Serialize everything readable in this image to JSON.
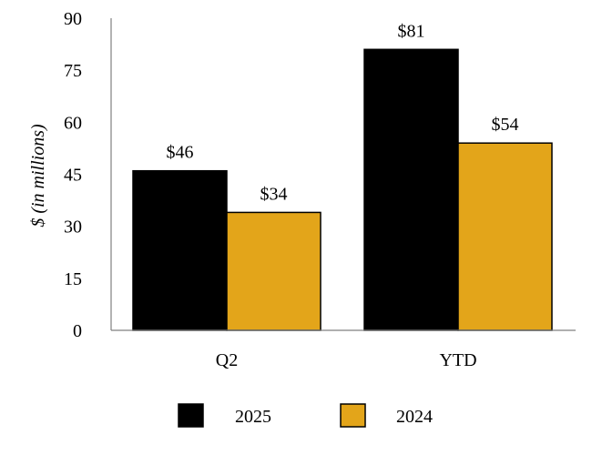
{
  "chart_data": {
    "type": "bar",
    "title": "",
    "xlabel": "",
    "ylabel": "$ (in millions)",
    "ylim": [
      0,
      90
    ],
    "yticks": [
      0,
      15,
      30,
      45,
      60,
      75,
      90
    ],
    "categories": [
      "Q2",
      "YTD"
    ],
    "series": [
      {
        "name": "2025",
        "values": [
          46,
          81
        ],
        "labels": [
          "$46",
          "$81"
        ],
        "color": "#000000"
      },
      {
        "name": "2024",
        "values": [
          34,
          54
        ],
        "labels": [
          "$34",
          "$54"
        ],
        "color": "#E3A51A"
      }
    ],
    "grid": false,
    "legend_position": "bottom"
  }
}
